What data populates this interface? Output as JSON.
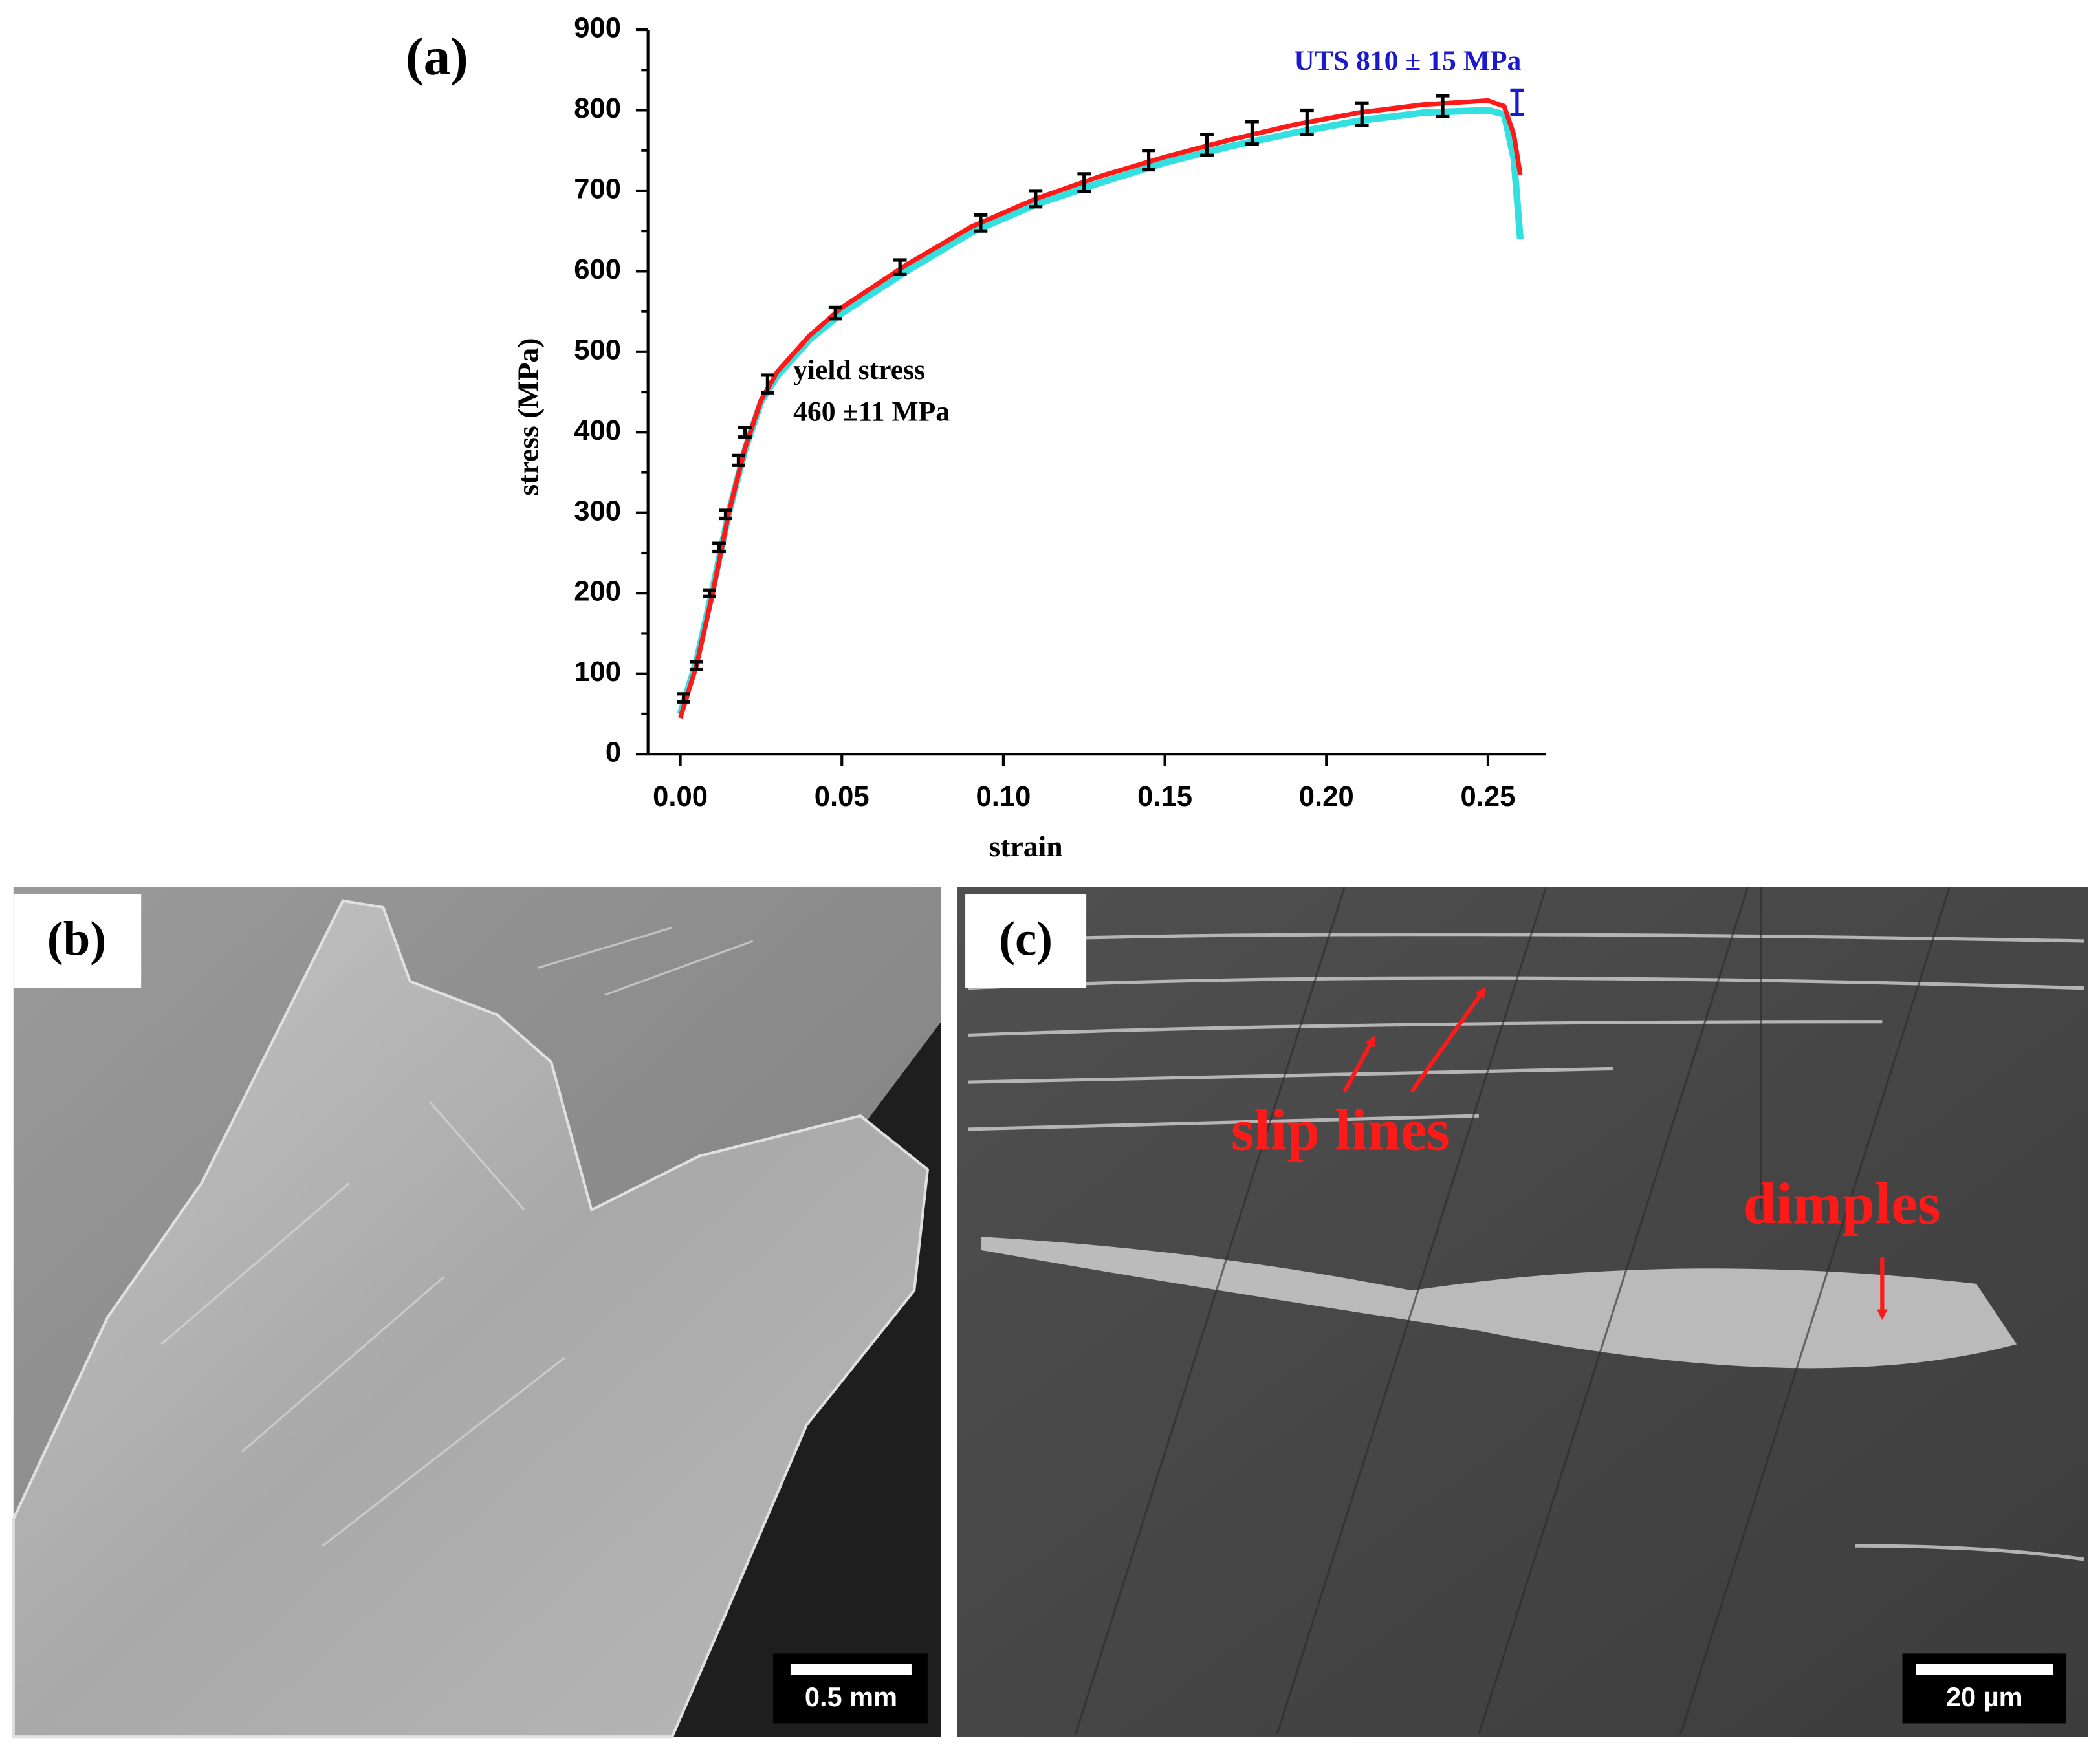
{
  "chart_data": {
    "type": "line",
    "panel_label": "(a)",
    "xlabel": "strain",
    "ylabel": "stress (MPa)",
    "xlim": [
      -0.01,
      0.268
    ],
    "ylim": [
      0,
      900
    ],
    "xticks": [
      {
        "value": 0,
        "label": "0.00"
      },
      {
        "value": 0.05,
        "label": "0.05"
      },
      {
        "value": 0.1,
        "label": "0.10"
      },
      {
        "value": 0.15,
        "label": "0.15"
      },
      {
        "value": 0.2,
        "label": "0.20"
      },
      {
        "value": 0.25,
        "label": "0.25"
      }
    ],
    "yticks": [
      0,
      100,
      200,
      300,
      400,
      500,
      600,
      700,
      800,
      900
    ],
    "yminorticks": [
      50,
      150,
      250,
      350,
      450,
      550,
      650,
      750,
      850
    ],
    "x": [
      0,
      0.005,
      0.01,
      0.015,
      0.02,
      0.025,
      0.03,
      0.04,
      0.05,
      0.07,
      0.09,
      0.11,
      0.13,
      0.15,
      0.17,
      0.19,
      0.21,
      0.23,
      0.25,
      0.255,
      0.258,
      0.26
    ],
    "series": [
      {
        "color": "#33e0e0",
        "values": [
          50,
          115,
          205,
          300,
          378,
          438,
          470,
          515,
          548,
          600,
          648,
          683,
          710,
          735,
          755,
          772,
          787,
          797,
          800,
          795,
          740,
          640
        ]
      },
      {
        "color": "#ff1a1a",
        "values": [
          45,
          110,
          200,
          300,
          380,
          440,
          475,
          520,
          555,
          608,
          655,
          690,
          718,
          742,
          763,
          782,
          797,
          807,
          812,
          805,
          770,
          720
        ]
      }
    ],
    "errorbars": [
      {
        "color": "#000000",
        "x": [
          0.001,
          0.005,
          0.009,
          0.012,
          0.014,
          0.018,
          0.02,
          0.027,
          0.048,
          0.068,
          0.093,
          0.11,
          0.125,
          0.145,
          0.163,
          0.177,
          0.194,
          0.211,
          0.236
        ],
        "values": [
          70,
          110,
          200,
          257,
          298,
          365,
          400,
          460,
          548,
          605,
          660,
          690,
          710,
          738,
          757,
          772,
          785,
          795,
          805
        ],
        "errors": [
          5,
          5,
          4,
          5,
          5,
          6,
          6,
          11,
          7,
          9,
          10,
          10,
          11,
          12,
          13,
          14,
          15,
          14,
          13
        ]
      },
      {
        "color": "#1a1acc",
        "x": [
          0.259
        ],
        "values": [
          810
        ],
        "errors": [
          15
        ]
      }
    ],
    "annotations": [
      {
        "text": "yield stress",
        "color": "#000000"
      },
      {
        "text": "460 ±11 MPa",
        "color": "#000000"
      },
      {
        "text": "UTS 810 ± 15 MPa",
        "color": "#1a1acc"
      }
    ]
  },
  "panels": [
    {
      "label": "(b)",
      "scale_bar": "0.5 mm"
    },
    {
      "label": "(c)",
      "scale_bar": "20 µm",
      "annotations": [
        "slip lines",
        "dimples"
      ]
    }
  ]
}
